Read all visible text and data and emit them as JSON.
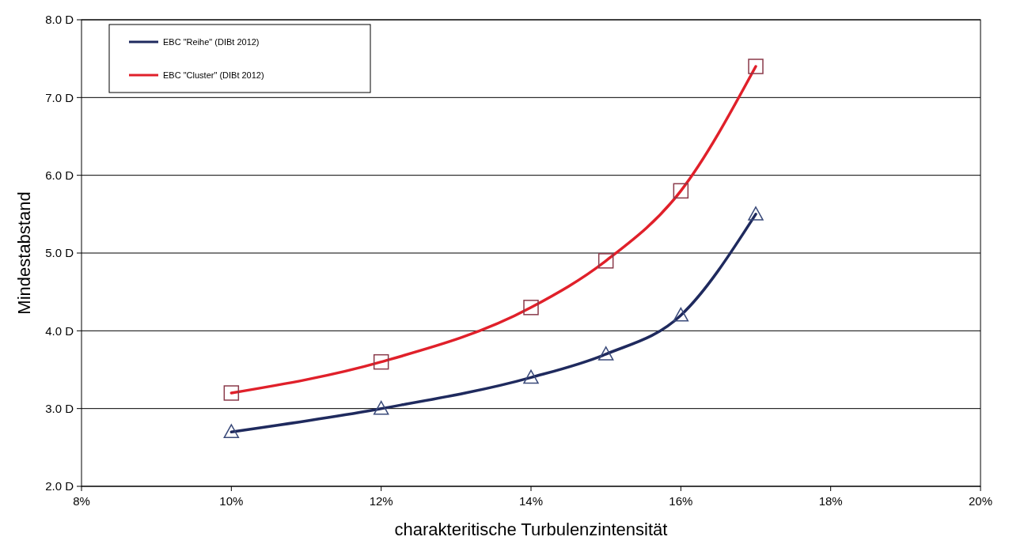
{
  "chart_data": {
    "type": "line",
    "xlabel": "charakteritische Turbulenzintensität",
    "ylabel": "Mindestabstand",
    "x": [
      10,
      12,
      14,
      15,
      16,
      17
    ],
    "series": [
      {
        "name": "EBC \"Reihe\" (DIBt 2012)",
        "color": "#1f2a5e",
        "marker": "triangle",
        "values": [
          2.7,
          3.0,
          3.4,
          3.7,
          4.2,
          5.5
        ]
      },
      {
        "name": "EBC \"Cluster\" (DIBt 2012)",
        "color": "#e0202a",
        "marker": "square",
        "values": [
          3.2,
          3.6,
          4.3,
          4.9,
          5.8,
          7.4
        ]
      }
    ],
    "xlim": [
      8,
      20
    ],
    "xticks": [
      {
        "value": 8,
        "label": "8%"
      },
      {
        "value": 10,
        "label": "10%"
      },
      {
        "value": 12,
        "label": "12%"
      },
      {
        "value": 14,
        "label": "14%"
      },
      {
        "value": 16,
        "label": "16%"
      },
      {
        "value": 18,
        "label": "18%"
      },
      {
        "value": 20,
        "label": "20%"
      }
    ],
    "ylim": [
      2,
      8
    ],
    "yticks": [
      {
        "value": 2,
        "label": "2.0 D"
      },
      {
        "value": 3,
        "label": "3.0 D"
      },
      {
        "value": 4,
        "label": "4.0 D"
      },
      {
        "value": 5,
        "label": "5.0 D"
      },
      {
        "value": 6,
        "label": "6.0 D"
      },
      {
        "value": 7,
        "label": "7.0 D"
      },
      {
        "value": 8,
        "label": "8.0 D"
      }
    ],
    "grid": "y",
    "legend": "top left",
    "line_style": "solid"
  }
}
